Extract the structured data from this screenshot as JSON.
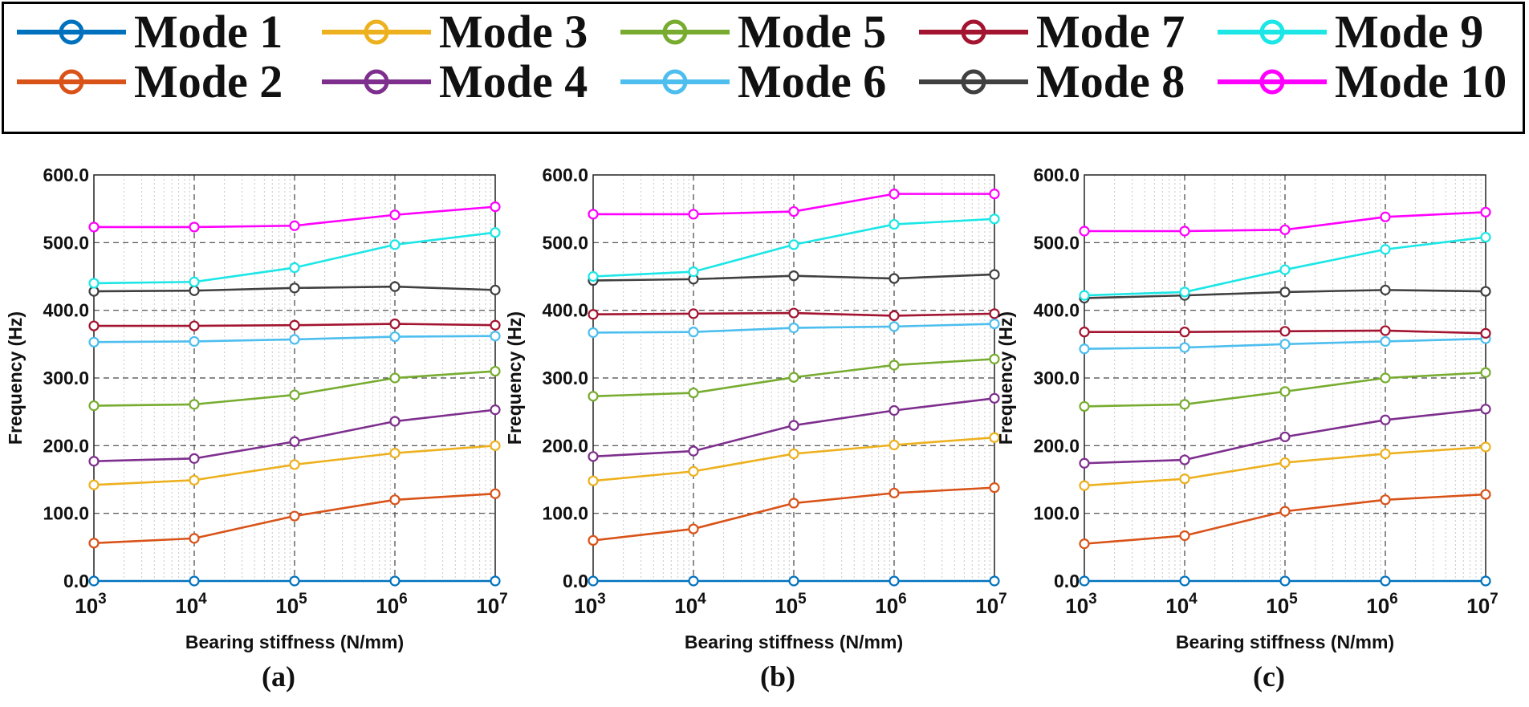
{
  "legend": [
    {
      "label": "Mode 1",
      "color": "#0072BD"
    },
    {
      "label": "Mode 2",
      "color": "#D95319"
    },
    {
      "label": "Mode 3",
      "color": "#EDB120"
    },
    {
      "label": "Mode 4",
      "color": "#7E2F8E"
    },
    {
      "label": "Mode 5",
      "color": "#77AC30"
    },
    {
      "label": "Mode 6",
      "color": "#4DBEEE"
    },
    {
      "label": "Mode 7",
      "color": "#A2142F"
    },
    {
      "label": "Mode 8",
      "color": "#404040"
    },
    {
      "label": "Mode 9",
      "color": "#1CE6E6"
    },
    {
      "label": "Mode 10",
      "color": "#FF00FF"
    }
  ],
  "chart_data": [
    {
      "type": "line",
      "panel_label": "(a)",
      "panel_letter": "a",
      "xlabel": "Bearing stiffness (N/mm)",
      "ylabel": "Frequency (Hz)",
      "x": [
        "10^3",
        "10^4",
        "10^5",
        "10^6",
        "10^7"
      ],
      "x_scale": "log",
      "ylim": [
        0,
        600
      ],
      "yticks": [
        "0.0",
        "100.0",
        "200.0",
        "300.0",
        "400.0",
        "500.0",
        "600.0"
      ],
      "grid": true,
      "series": [
        {
          "name": "Mode 1",
          "values": [
            0,
            0,
            0,
            0,
            0
          ]
        },
        {
          "name": "Mode 2",
          "values": [
            56,
            63,
            96,
            120,
            129
          ]
        },
        {
          "name": "Mode 3",
          "values": [
            142,
            149,
            172,
            189,
            200
          ]
        },
        {
          "name": "Mode 4",
          "values": [
            177,
            181,
            206,
            236,
            253
          ]
        },
        {
          "name": "Mode 5",
          "values": [
            259,
            261,
            275,
            300,
            310
          ]
        },
        {
          "name": "Mode 6",
          "values": [
            353,
            354,
            357,
            361,
            362
          ]
        },
        {
          "name": "Mode 7",
          "values": [
            377,
            377,
            378,
            380,
            378
          ]
        },
        {
          "name": "Mode 8",
          "values": [
            428,
            429,
            433,
            435,
            430
          ]
        },
        {
          "name": "Mode 9",
          "values": [
            440,
            442,
            463,
            497,
            515
          ]
        },
        {
          "name": "Mode 10",
          "values": [
            523,
            523,
            525,
            541,
            553
          ]
        }
      ]
    },
    {
      "type": "line",
      "panel_label": "(b)",
      "panel_letter": "b",
      "xlabel": "Bearing stiffness (N/mm)",
      "ylabel": "Frequency (Hz)",
      "x": [
        "10^3",
        "10^4",
        "10^5",
        "10^6",
        "10^7"
      ],
      "x_scale": "log",
      "ylim": [
        0,
        600
      ],
      "yticks": [
        "0.0",
        "100.0",
        "200.0",
        "300.0",
        "400.0",
        "500.0",
        "600.0"
      ],
      "grid": true,
      "series": [
        {
          "name": "Mode 1",
          "values": [
            0,
            0,
            0,
            0,
            0
          ]
        },
        {
          "name": "Mode 2",
          "values": [
            60,
            77,
            115,
            130,
            138
          ]
        },
        {
          "name": "Mode 3",
          "values": [
            148,
            162,
            188,
            201,
            212
          ]
        },
        {
          "name": "Mode 4",
          "values": [
            184,
            192,
            230,
            252,
            270
          ]
        },
        {
          "name": "Mode 5",
          "values": [
            273,
            278,
            301,
            319,
            328
          ]
        },
        {
          "name": "Mode 6",
          "values": [
            367,
            368,
            374,
            376,
            380
          ]
        },
        {
          "name": "Mode 7",
          "values": [
            394,
            395,
            396,
            392,
            395
          ]
        },
        {
          "name": "Mode 8",
          "values": [
            444,
            446,
            451,
            447,
            453
          ]
        },
        {
          "name": "Mode 9",
          "values": [
            450,
            457,
            497,
            527,
            535
          ]
        },
        {
          "name": "Mode 10",
          "values": [
            542,
            542,
            546,
            572,
            572
          ]
        }
      ]
    },
    {
      "type": "line",
      "panel_label": "(c)",
      "panel_letter": "c",
      "xlabel": "Bearing stiffness (N/mm)",
      "ylabel": "Frequency (Hz)",
      "x": [
        "10^3",
        "10^4",
        "10^5",
        "10^6",
        "10^7"
      ],
      "x_scale": "log",
      "ylim": [
        0,
        600
      ],
      "yticks": [
        "0.0",
        "100.0",
        "200.0",
        "300.0",
        "400.0",
        "500.0",
        "600.0"
      ],
      "grid": true,
      "series": [
        {
          "name": "Mode 1",
          "values": [
            0,
            0,
            0,
            0,
            0
          ]
        },
        {
          "name": "Mode 2",
          "values": [
            55,
            67,
            103,
            120,
            128
          ]
        },
        {
          "name": "Mode 3",
          "values": [
            141,
            151,
            175,
            188,
            198
          ]
        },
        {
          "name": "Mode 4",
          "values": [
            174,
            179,
            213,
            238,
            254
          ]
        },
        {
          "name": "Mode 5",
          "values": [
            258,
            261,
            280,
            300,
            308
          ]
        },
        {
          "name": "Mode 6",
          "values": [
            343,
            345,
            350,
            354,
            358
          ]
        },
        {
          "name": "Mode 7",
          "values": [
            368,
            368,
            369,
            370,
            366
          ]
        },
        {
          "name": "Mode 8",
          "values": [
            418,
            422,
            427,
            430,
            428
          ]
        },
        {
          "name": "Mode 9",
          "values": [
            422,
            427,
            460,
            490,
            508
          ]
        },
        {
          "name": "Mode 10",
          "values": [
            517,
            517,
            519,
            538,
            545
          ]
        }
      ]
    }
  ]
}
